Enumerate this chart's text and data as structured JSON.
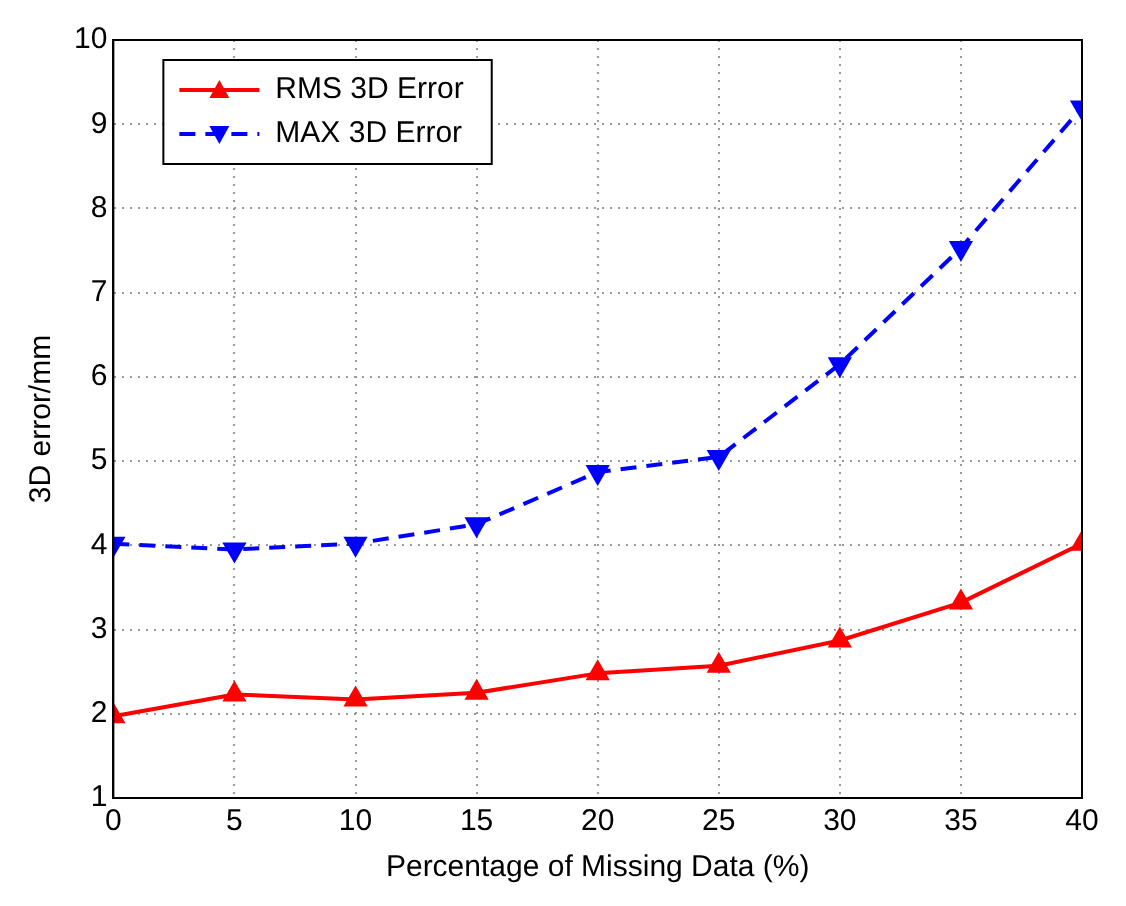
{
  "chart_data": {
    "type": "line",
    "xlabel": "Percentage of Missing Data (%)",
    "ylabel": "3D error/mm",
    "x": [
      0,
      5,
      10,
      15,
      20,
      25,
      30,
      35,
      40
    ],
    "series": [
      {
        "name": "RMS 3D Error",
        "color": "#ff0000",
        "marker": "triangle",
        "line_style": "solid",
        "values": [
          1.97,
          2.23,
          2.17,
          2.25,
          2.48,
          2.57,
          2.87,
          3.32,
          4.02
        ]
      },
      {
        "name": "MAX 3D Error",
        "color": "#0000ff",
        "marker": "triangle-down",
        "line_style": "dashed",
        "values": [
          4.02,
          3.95,
          4.02,
          4.25,
          4.87,
          5.05,
          6.15,
          7.53,
          9.2
        ]
      }
    ],
    "xlim": [
      0,
      40
    ],
    "xticks": [
      0,
      5,
      10,
      15,
      20,
      25,
      30,
      35,
      40
    ],
    "ylim": [
      1,
      10
    ],
    "yticks": [
      1,
      2,
      3,
      4,
      5,
      6,
      7,
      8,
      9,
      10
    ],
    "grid": true,
    "legend": "top left"
  }
}
